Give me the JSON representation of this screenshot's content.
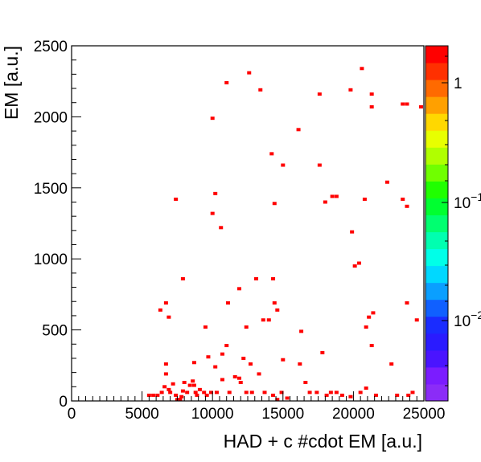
{
  "chart_data": {
    "type": "heatmap",
    "title": "",
    "xlabel": "HAD + c #cdot EM [a.u.]",
    "ylabel": "EM [a.u.]",
    "xlim": [
      0,
      25000
    ],
    "ylim": [
      0,
      2500
    ],
    "x_ticks": [
      "0",
      "5000",
      "10000",
      "15000",
      "20000",
      "25000"
    ],
    "y_ticks": [
      "0",
      "500",
      "1000",
      "1500",
      "2000",
      "2500"
    ],
    "z_scale": "log",
    "z_ticks": [
      {
        "label": "1",
        "exp": ""
      },
      {
        "label": "10",
        "exp": "−1"
      },
      {
        "label": "10",
        "exp": "−2"
      }
    ],
    "palette": [
      "#8b2cf7",
      "#7b1cff",
      "#4a14ff",
      "#2a1bff",
      "#1a2cff",
      "#1060ff",
      "#0a9fff",
      "#00d8ff",
      "#00ffe8",
      "#00ffb0",
      "#00ff70",
      "#00ff30",
      "#20ff00",
      "#70ff00",
      "#b0ff00",
      "#e8ff00",
      "#ffd800",
      "#ffa000",
      "#ff6a00",
      "#ff3000",
      "#ff0000"
    ],
    "cell_color": "#ff0000",
    "points": [
      [
        11000,
        2240
      ],
      [
        12600,
        2310
      ],
      [
        13400,
        2190
      ],
      [
        17600,
        2160
      ],
      [
        19800,
        2190
      ],
      [
        20600,
        2340
      ],
      [
        21300,
        2160
      ],
      [
        21300,
        2070
      ],
      [
        23500,
        2090
      ],
      [
        23800,
        2090
      ],
      [
        24800,
        2070
      ],
      [
        10000,
        1990
      ],
      [
        16100,
        1910
      ],
      [
        14200,
        1740
      ],
      [
        15000,
        1660
      ],
      [
        17600,
        1660
      ],
      [
        22400,
        1540
      ],
      [
        7400,
        1420
      ],
      [
        10200,
        1460
      ],
      [
        14400,
        1390
      ],
      [
        18000,
        1400
      ],
      [
        18500,
        1440
      ],
      [
        18800,
        1440
      ],
      [
        20800,
        1420
      ],
      [
        23500,
        1420
      ],
      [
        23800,
        1370
      ],
      [
        10000,
        1320
      ],
      [
        10600,
        1220
      ],
      [
        19900,
        1190
      ],
      [
        20100,
        950
      ],
      [
        20400,
        970
      ],
      [
        7900,
        860
      ],
      [
        11900,
        790
      ],
      [
        13100,
        860
      ],
      [
        14300,
        860
      ],
      [
        6700,
        690
      ],
      [
        6300,
        640
      ],
      [
        6900,
        590
      ],
      [
        11100,
        690
      ],
      [
        14400,
        690
      ],
      [
        14600,
        640
      ],
      [
        9500,
        520
      ],
      [
        12400,
        520
      ],
      [
        13600,
        570
      ],
      [
        14000,
        570
      ],
      [
        16300,
        490
      ],
      [
        21100,
        590
      ],
      [
        21400,
        620
      ],
      [
        20900,
        520
      ],
      [
        23800,
        690
      ],
      [
        24500,
        570
      ],
      [
        21300,
        390
      ],
      [
        17800,
        340
      ],
      [
        9700,
        310
      ],
      [
        11000,
        390
      ],
      [
        10700,
        330
      ],
      [
        12200,
        300
      ],
      [
        22700,
        260
      ],
      [
        15000,
        290
      ],
      [
        16200,
        260
      ],
      [
        6700,
        260
      ],
      [
        8700,
        270
      ],
      [
        10200,
        240
      ],
      [
        12700,
        260
      ],
      [
        5500,
        40
      ],
      [
        5800,
        40
      ],
      [
        6100,
        40
      ],
      [
        6400,
        60
      ],
      [
        6600,
        100
      ],
      [
        6700,
        190
      ],
      [
        6900,
        80
      ],
      [
        7000,
        60
      ],
      [
        7200,
        120
      ],
      [
        7400,
        40
      ],
      [
        7500,
        10
      ],
      [
        7700,
        10
      ],
      [
        7800,
        30
      ],
      [
        7900,
        70
      ],
      [
        8000,
        130
      ],
      [
        8200,
        60
      ],
      [
        8400,
        110
      ],
      [
        8600,
        140
      ],
      [
        8700,
        110
      ],
      [
        8800,
        60
      ],
      [
        8900,
        40
      ],
      [
        9100,
        80
      ],
      [
        9400,
        60
      ],
      [
        9600,
        40
      ],
      [
        9900,
        60
      ],
      [
        10300,
        60
      ],
      [
        10700,
        150
      ],
      [
        11200,
        60
      ],
      [
        11600,
        170
      ],
      [
        11900,
        160
      ],
      [
        12000,
        130
      ],
      [
        12400,
        60
      ],
      [
        12800,
        60
      ],
      [
        13300,
        190
      ],
      [
        13700,
        60
      ],
      [
        14300,
        40
      ],
      [
        14600,
        10
      ],
      [
        14900,
        60
      ],
      [
        15300,
        20
      ],
      [
        16600,
        130
      ],
      [
        16900,
        60
      ],
      [
        17400,
        60
      ],
      [
        18100,
        40
      ],
      [
        18400,
        60
      ],
      [
        18800,
        60
      ],
      [
        19200,
        40
      ],
      [
        19800,
        30
      ],
      [
        20500,
        60
      ],
      [
        20900,
        90
      ],
      [
        21600,
        40
      ],
      [
        23100,
        40
      ],
      [
        23900,
        40
      ],
      [
        24200,
        60
      ]
    ]
  }
}
